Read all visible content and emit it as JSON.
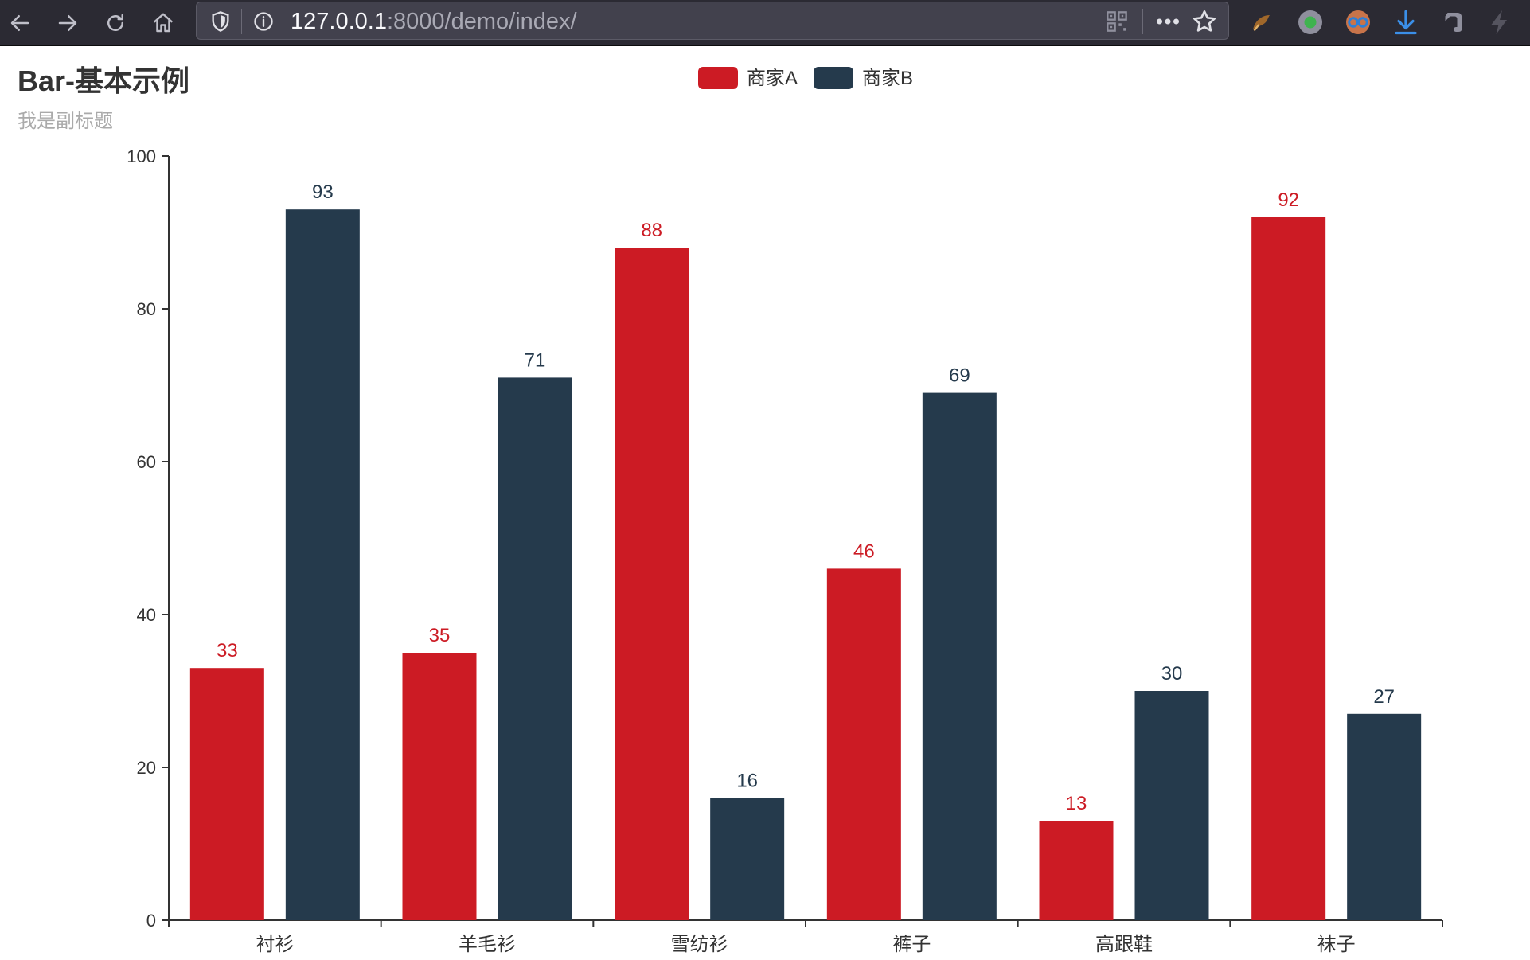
{
  "browser": {
    "url_host": "127.0.0.1",
    "url_rest": ":8000/demo/index/",
    "icons": [
      "back-icon",
      "forward-icon",
      "reload-icon",
      "home-icon",
      "tracking-shield-icon",
      "site-info-icon",
      "qr-code-icon",
      "page-actions-icon",
      "bookmark-star-icon",
      "extension-icon",
      "extension-record-icon",
      "extension-glasses-icon",
      "download-icon",
      "evernote-icon",
      "lightning-icon"
    ]
  },
  "colors": {
    "series_a": "#cc1b24",
    "series_b": "#253a4c",
    "axis": "#333333"
  },
  "chart_data": {
    "type": "bar",
    "title": "Bar-基本示例",
    "subtitle": "我是副标题",
    "categories": [
      "衬衫",
      "羊毛衫",
      "雪纺衫",
      "裤子",
      "高跟鞋",
      "袜子"
    ],
    "series": [
      {
        "name": "商家A",
        "values": [
          33,
          35,
          88,
          46,
          13,
          92
        ]
      },
      {
        "name": "商家B",
        "values": [
          93,
          71,
          16,
          69,
          30,
          27
        ]
      }
    ],
    "ylim": [
      0,
      100
    ],
    "yticks": [
      0,
      20,
      40,
      60,
      80,
      100
    ],
    "legend_position": "top-center",
    "grid": false,
    "data_labels": true
  }
}
